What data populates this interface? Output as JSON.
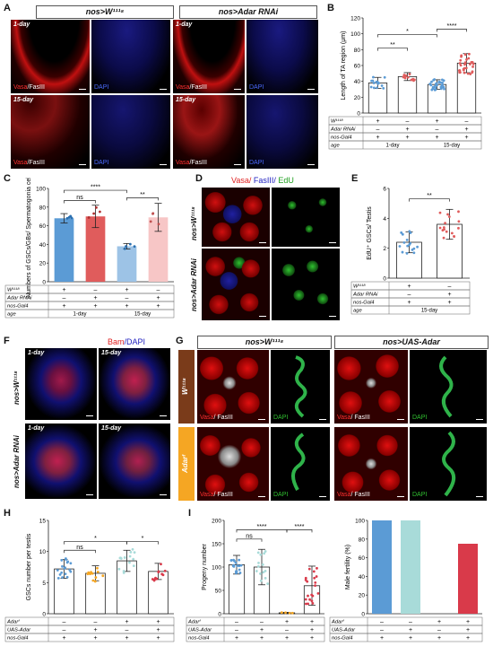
{
  "panels": {
    "A": "A",
    "B": "B",
    "C": "C",
    "D": "D",
    "E": "E",
    "F": "F",
    "G": "G",
    "H": "H",
    "I": "I"
  },
  "A": {
    "col1": "nos>W¹¹¹⁸",
    "col2": "nos>Adar RNAi",
    "t1": "1-day",
    "t2": "15-day",
    "ch_red": "Vasa",
    "ch_white": "/FasIII",
    "ch_blue": "DAPI"
  },
  "colors": {
    "blue": "#5b9bd5",
    "red": "#e05c5c",
    "cyan": "#a8dbd9",
    "pink": "#f7c6c6",
    "orange": "#f5a623",
    "darkred": "#d93a4a"
  },
  "B": {
    "ylabel": "Length of TA region (μm)",
    "yticks": [
      "0",
      "20",
      "40",
      "60",
      "80",
      "100",
      "120"
    ],
    "sig": [
      "*",
      "**",
      "****"
    ],
    "rows": [
      {
        "label": "W¹¹¹⁸",
        "vals": [
          "+",
          "–",
          "+",
          "–"
        ]
      },
      {
        "label": "Adar RNAi",
        "vals": [
          "–",
          "+",
          "–",
          "+"
        ]
      },
      {
        "label": "nos-Gal4",
        "vals": [
          "+",
          "+",
          "+",
          "+"
        ]
      },
      {
        "label": "age",
        "vals": [
          "1-day",
          "15-day"
        ]
      }
    ]
  },
  "chart_data": [
    {
      "type": "bar",
      "panel": "B",
      "categories": [
        "1",
        "2",
        "3",
        "4"
      ],
      "values": [
        38,
        46,
        36,
        63
      ],
      "ylim": [
        0,
        120
      ],
      "ylabel": "Length of TA region (μm)"
    },
    {
      "type": "bar",
      "panel": "C",
      "categories": [
        "1",
        "2",
        "3",
        "4"
      ],
      "values": [
        68,
        70,
        38,
        69
      ],
      "ylim": [
        0,
        100
      ],
      "ylabel": "Numbers of GSCs/GBs/ Spermatogonia cells"
    },
    {
      "type": "bar",
      "panel": "E",
      "categories": [
        "1",
        "2"
      ],
      "values": [
        2.4,
        3.6
      ],
      "ylim": [
        0,
        6
      ],
      "ylabel": "EdU⁺ GSCs/ Testis"
    },
    {
      "type": "bar",
      "panel": "H",
      "categories": [
        "1",
        "2",
        "3",
        "4"
      ],
      "values": [
        7.2,
        6.5,
        8.5,
        6.8
      ],
      "ylim": [
        0,
        15
      ],
      "ylabel": "GSCs number per testis"
    },
    {
      "type": "bar",
      "panel": "I1",
      "categories": [
        "1",
        "2",
        "3",
        "4"
      ],
      "values": [
        105,
        100,
        2,
        60
      ],
      "ylim": [
        0,
        200
      ],
      "ylabel": "Progeny number"
    },
    {
      "type": "bar",
      "panel": "I2",
      "categories": [
        "1",
        "2",
        "3",
        "4"
      ],
      "values": [
        100,
        100,
        0,
        75
      ],
      "ylim": [
        0,
        100
      ],
      "ylabel": "Male fertility (%)"
    }
  ],
  "C": {
    "ylabel": "Numbers of GSCs/GBs/ Spermatogonia cells",
    "yticks": [
      "0",
      "20",
      "40",
      "60",
      "80",
      "100"
    ],
    "sig": [
      "ns",
      "****",
      "**"
    ],
    "rows": [
      {
        "label": "W¹¹¹⁸",
        "vals": [
          "+",
          "–",
          "+",
          "–"
        ]
      },
      {
        "label": "Adar RNAi",
        "vals": [
          "–",
          "+",
          "–",
          "+"
        ]
      },
      {
        "label": "nos-Gal4",
        "vals": [
          "+",
          "+",
          "+",
          "+"
        ]
      },
      {
        "label": "age",
        "vals": [
          "1-day",
          "15-day"
        ]
      }
    ]
  },
  "D": {
    "title_vasa": "Vasa/",
    "title_fas": " FasIII/",
    "title_edu": " EdU",
    "row1": "nos>W¹¹¹⁸",
    "row2": "nos>Adar RNAi"
  },
  "E": {
    "ylabel": "EdU⁺ GSCs/ Testis",
    "yticks": [
      "0",
      "2",
      "4",
      "6"
    ],
    "sig": [
      "**"
    ],
    "rows": [
      {
        "label": "W¹¹¹⁸",
        "vals": [
          "+",
          "–"
        ]
      },
      {
        "label": "Adar RNAi",
        "vals": [
          "–",
          "+"
        ]
      },
      {
        "label": "nos-Gal4",
        "vals": [
          "+",
          "+"
        ]
      },
      {
        "label": "age",
        "vals": [
          "15-day"
        ]
      }
    ]
  },
  "F": {
    "title_bam": "Bam",
    "title_dapi": "/DAPI",
    "t1": "1-day",
    "t2": "15-day",
    "row1": "nos>W¹¹¹⁸",
    "row2": "nos>Adar RNAi"
  },
  "G": {
    "col1": "nos>W¹¹¹⁸",
    "col2": "nos>UAS-Adar",
    "row1": "W¹¹¹⁸",
    "row2": "Adarᶠ",
    "ch_vasa": "Vasa",
    "ch_fas": "/ FasIII",
    "ch_dapi": "DAPI"
  },
  "H": {
    "ylabel": "GSCs number per testis",
    "yticks": [
      "0",
      "5",
      "10",
      "15"
    ],
    "sig": [
      "ns",
      "*",
      "*"
    ],
    "rows": [
      {
        "label": "Adarᶠ",
        "vals": [
          "–",
          "–",
          "+",
          "+"
        ]
      },
      {
        "label": "UAS-Adar",
        "vals": [
          "–",
          "+",
          "–",
          "+"
        ]
      },
      {
        "label": "nos-Gal4",
        "vals": [
          "+",
          "+",
          "+",
          "+"
        ]
      }
    ]
  },
  "I": {
    "ylabel1": "Progeny number",
    "yticks1": [
      "0",
      "50",
      "100",
      "150",
      "200"
    ],
    "sig": [
      "ns",
      "****",
      "****"
    ],
    "ylabel2": "Male fertility (%)",
    "yticks2": [
      "0",
      "20",
      "40",
      "60",
      "80",
      "100"
    ],
    "rows": [
      {
        "label": "Adarᶠ",
        "vals": [
          "–",
          "–",
          "+",
          "+"
        ]
      },
      {
        "label": "UAS-Adar",
        "vals": [
          "–",
          "+",
          "–",
          "+"
        ]
      },
      {
        "label": "nos-Gal4",
        "vals": [
          "+",
          "+",
          "+",
          "+"
        ]
      }
    ]
  }
}
